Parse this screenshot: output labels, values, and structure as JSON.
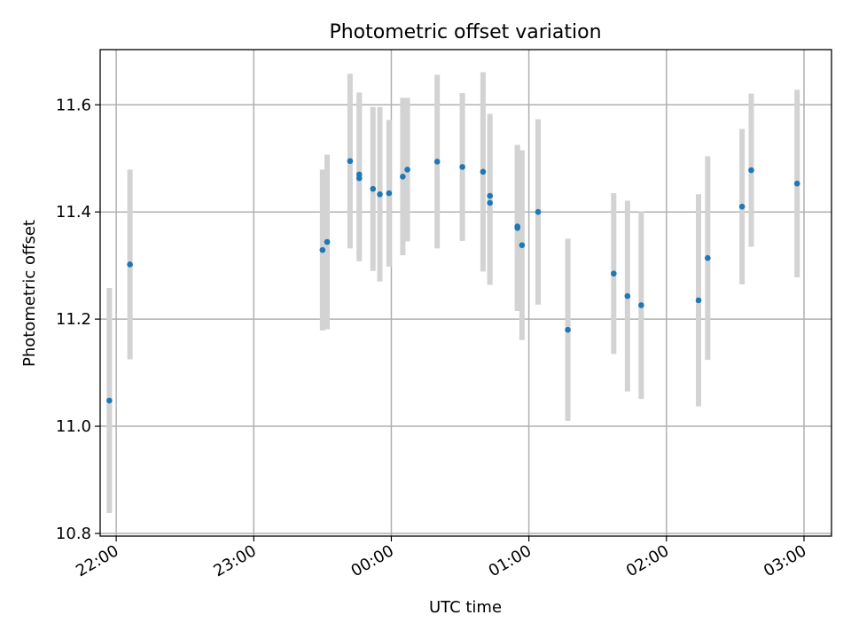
{
  "chart_data": {
    "type": "scatter",
    "title": "Photometric offset variation",
    "xlabel": "UTC time",
    "ylabel": "Photometric offset",
    "xlim": [
      "21:53",
      "03:12"
    ],
    "ylim": [
      10.795,
      11.703
    ],
    "grid": true,
    "x_ticks": [
      "22:00",
      "23:00",
      "00:00",
      "01:00",
      "02:00",
      "03:00"
    ],
    "y_ticks": [
      "10.8",
      "11.0",
      "11.2",
      "11.4",
      "11.6"
    ],
    "colors": {
      "point": "#1f77b4",
      "errorbar": "#d3d3d3"
    },
    "series": [
      {
        "x": [
          "21:57",
          "22:06",
          "23:30",
          "23:32",
          "23:42",
          "23:46",
          "23:46",
          "23:52",
          "23:55",
          "23:59",
          "00:05",
          "00:07",
          "00:20",
          "00:31",
          "00:40",
          "00:43",
          "00:43",
          "00:55",
          "00:55",
          "00:57",
          "01:04",
          "01:17",
          "01:37",
          "01:43",
          "01:49",
          "02:14",
          "02:18",
          "02:33",
          "02:37",
          "02:57"
        ],
        "y": [
          11.048,
          11.302,
          11.329,
          11.344,
          11.495,
          11.47,
          11.463,
          11.443,
          11.433,
          11.435,
          11.466,
          11.479,
          11.494,
          11.484,
          11.475,
          11.43,
          11.417,
          11.373,
          11.37,
          11.338,
          11.4,
          11.18,
          11.285,
          11.243,
          11.226,
          11.235,
          11.314,
          11.41,
          11.478,
          11.453
        ],
        "yerr": [
          0.21,
          0.177,
          0.15,
          0.163,
          0.163,
          0.153,
          0.155,
          0.153,
          0.163,
          0.137,
          0.147,
          0.134,
          0.162,
          0.138,
          0.186,
          0.153,
          0.153,
          0.152,
          0.155,
          0.177,
          0.173,
          0.17,
          0.15,
          0.178,
          0.175,
          0.198,
          0.19,
          0.145,
          0.143,
          0.175
        ]
      }
    ]
  }
}
